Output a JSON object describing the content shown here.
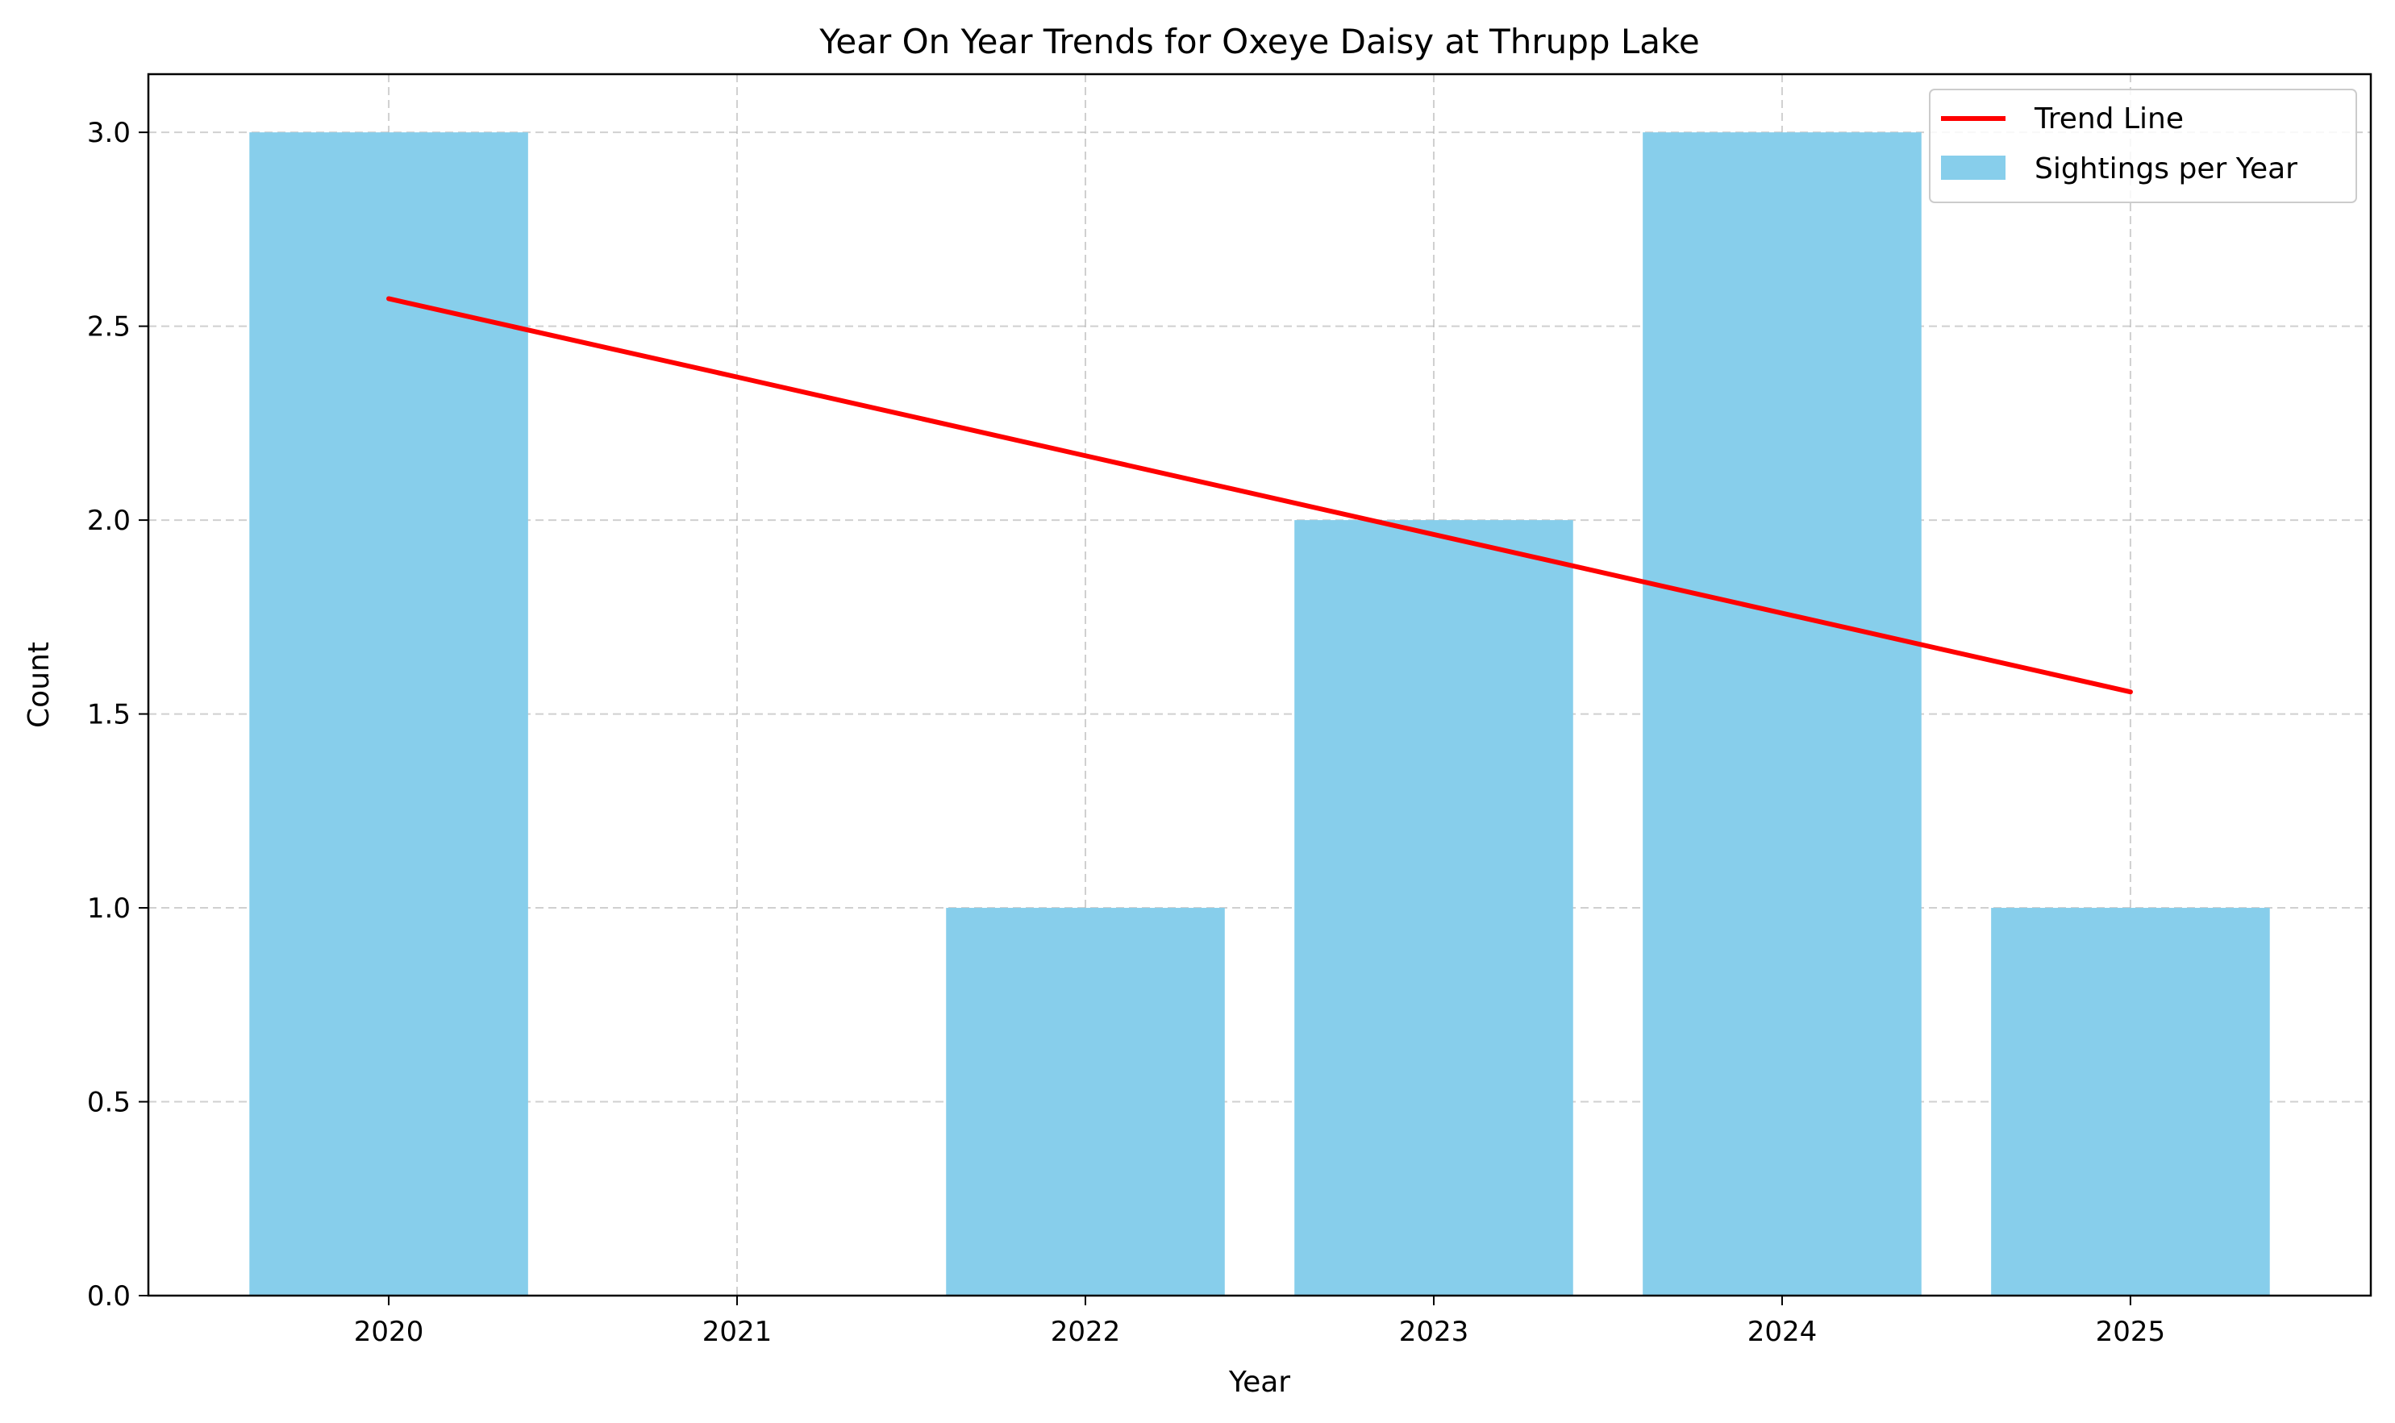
{
  "chart_data": {
    "type": "bar",
    "title": "Year On Year Trends for Oxeye Daisy at Thrupp Lake",
    "xlabel": "Year",
    "ylabel": "Count",
    "categories": [
      "2020",
      "2021",
      "2022",
      "2023",
      "2024",
      "2025"
    ],
    "series": [
      {
        "name": "Sightings per Year",
        "type": "bar",
        "values": [
          3,
          0,
          1,
          2,
          3,
          1
        ],
        "color": "#87CEEB"
      },
      {
        "name": "Trend Line",
        "type": "line",
        "values": [
          2.571,
          2.369,
          2.166,
          1.963,
          1.76,
          1.557
        ],
        "color": "#FF0000"
      }
    ],
    "ylim": [
      0,
      3.15
    ],
    "yticks": [
      0.0,
      0.5,
      1.0,
      1.5,
      2.0,
      2.5,
      3.0
    ],
    "ytick_labels": [
      "0.0",
      "0.5",
      "1.0",
      "1.5",
      "2.0",
      "2.5",
      "3.0"
    ],
    "grid": true,
    "legend_position": "top-right",
    "legend": [
      "Trend Line",
      "Sightings per Year"
    ]
  }
}
